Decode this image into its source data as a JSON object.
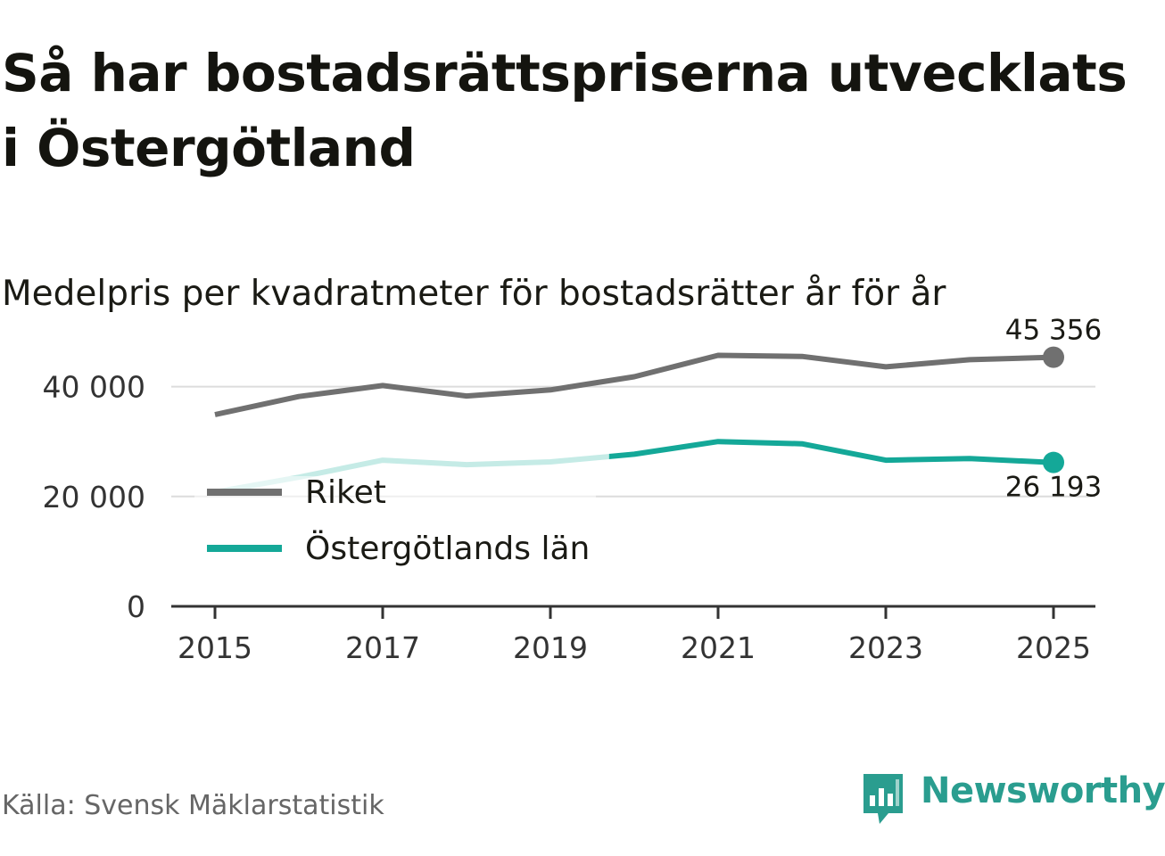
{
  "title": "Så har bostadsrättspriserna utvecklats i Östergötland",
  "subtitle": "Medelpris per kvadratmeter för bostadsrätter år för år",
  "source": "Källa: Svensk Mäklarstatistik",
  "brand": {
    "name": "Newsworthy",
    "icon": "newsworthy-logo-icon",
    "color": "#2a9d8f"
  },
  "chart_data": {
    "type": "line",
    "title": "Medelpris per kvadratmeter för bostadsrätter år för år",
    "xlabel": "",
    "ylabel": "",
    "x": [
      2015,
      2016,
      2017,
      2018,
      2019,
      2020,
      2021,
      2022,
      2023,
      2024,
      2025
    ],
    "x_ticks": [
      "2015",
      "2017",
      "2019",
      "2021",
      "2023",
      "2025"
    ],
    "y_ticks": [
      "0",
      "20 000",
      "40 000"
    ],
    "y_tick_values": [
      0,
      20000,
      40000
    ],
    "xlim": [
      2014.5,
      2025.5
    ],
    "ylim": [
      0,
      50000
    ],
    "grid": true,
    "legend_position": "left",
    "series": [
      {
        "name": "Riket",
        "color": "#707070",
        "values": [
          34900,
          38200,
          40200,
          38300,
          39400,
          41800,
          45700,
          45500,
          43600,
          44900,
          45356
        ],
        "end_label": "45 356"
      },
      {
        "name": "Östergötlands län",
        "color": "#14a898",
        "faded_color": "#c5ebe6",
        "faded_until": 2019.7,
        "values": [
          20800,
          23500,
          26600,
          25800,
          26300,
          27700,
          30000,
          29600,
          26600,
          26900,
          26193
        ],
        "end_label": "26 193"
      }
    ]
  }
}
